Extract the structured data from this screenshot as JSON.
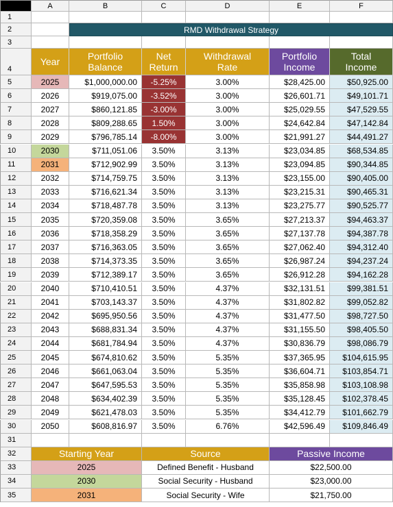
{
  "columns": [
    "A",
    "B",
    "C",
    "D",
    "E",
    "F"
  ],
  "row_numbers": [
    "1",
    "2",
    "3",
    "4",
    "5",
    "6",
    "7",
    "8",
    "9",
    "10",
    "11",
    "12",
    "13",
    "14",
    "15",
    "16",
    "17",
    "18",
    "19",
    "20",
    "21",
    "22",
    "23",
    "24",
    "25",
    "26",
    "27",
    "28",
    "29",
    "30",
    "31",
    "32",
    "33",
    "34",
    "35"
  ],
  "title": "RMD Withdrawal Strategy",
  "headers": {
    "year": "Year",
    "portfolio_balance": [
      "Portfolio",
      "Balance"
    ],
    "net_return": [
      "Net",
      "Return"
    ],
    "withdrawal_rate": [
      "Withdrawal",
      "Rate"
    ],
    "portfolio_income": [
      "Portfolio",
      "Income"
    ],
    "total_income": [
      "Total",
      "Income"
    ]
  },
  "rows": [
    [
      "2025",
      "$1,000,000.00",
      "-5.25%",
      "3.00%",
      "$28,425.00",
      "$50,925.00"
    ],
    [
      "2026",
      "$919,075.00",
      "-3.52%",
      "3.00%",
      "$26,601.71",
      "$49,101.71"
    ],
    [
      "2027",
      "$860,121.85",
      "-3.00%",
      "3.00%",
      "$25,029.55",
      "$47,529.55"
    ],
    [
      "2028",
      "$809,288.65",
      "1.50%",
      "3.00%",
      "$24,642.84",
      "$47,142.84"
    ],
    [
      "2029",
      "$796,785.14",
      "-8.00%",
      "3.00%",
      "$21,991.27",
      "$44,491.27"
    ],
    [
      "2030",
      "$711,051.06",
      "3.50%",
      "3.13%",
      "$23,034.85",
      "$68,534.85"
    ],
    [
      "2031",
      "$712,902.99",
      "3.50%",
      "3.13%",
      "$23,094.85",
      "$90,344.85"
    ],
    [
      "2032",
      "$714,759.75",
      "3.50%",
      "3.13%",
      "$23,155.00",
      "$90,405.00"
    ],
    [
      "2033",
      "$716,621.34",
      "3.50%",
      "3.13%",
      "$23,215.31",
      "$90,465.31"
    ],
    [
      "2034",
      "$718,487.78",
      "3.50%",
      "3.13%",
      "$23,275.77",
      "$90,525.77"
    ],
    [
      "2035",
      "$720,359.08",
      "3.50%",
      "3.65%",
      "$27,213.37",
      "$94,463.37"
    ],
    [
      "2036",
      "$718,358.29",
      "3.50%",
      "3.65%",
      "$27,137.78",
      "$94,387.78"
    ],
    [
      "2037",
      "$716,363.05",
      "3.50%",
      "3.65%",
      "$27,062.40",
      "$94,312.40"
    ],
    [
      "2038",
      "$714,373.35",
      "3.50%",
      "3.65%",
      "$26,987.24",
      "$94,237.24"
    ],
    [
      "2039",
      "$712,389.17",
      "3.50%",
      "3.65%",
      "$26,912.28",
      "$94,162.28"
    ],
    [
      "2040",
      "$710,410.51",
      "3.50%",
      "4.37%",
      "$32,131.51",
      "$99,381.51"
    ],
    [
      "2041",
      "$703,143.37",
      "3.50%",
      "4.37%",
      "$31,802.82",
      "$99,052.82"
    ],
    [
      "2042",
      "$695,950.56",
      "3.50%",
      "4.37%",
      "$31,477.50",
      "$98,727.50"
    ],
    [
      "2043",
      "$688,831.34",
      "3.50%",
      "4.37%",
      "$31,155.50",
      "$98,405.50"
    ],
    [
      "2044",
      "$681,784.94",
      "3.50%",
      "4.37%",
      "$30,836.79",
      "$98,086.79"
    ],
    [
      "2045",
      "$674,810.62",
      "3.50%",
      "5.35%",
      "$37,365.95",
      "$104,615.95"
    ],
    [
      "2046",
      "$661,063.04",
      "3.50%",
      "5.35%",
      "$36,604.71",
      "$103,854.71"
    ],
    [
      "2047",
      "$647,595.53",
      "3.50%",
      "5.35%",
      "$35,858.98",
      "$103,108.98"
    ],
    [
      "2048",
      "$634,402.39",
      "3.50%",
      "5.35%",
      "$35,128.45",
      "$102,378.45"
    ],
    [
      "2049",
      "$621,478.03",
      "3.50%",
      "5.35%",
      "$34,412.79",
      "$101,662.79"
    ],
    [
      "2050",
      "$608,816.97",
      "3.50%",
      "6.76%",
      "$42,596.49",
      "$109,846.49"
    ]
  ],
  "bottom_headers": {
    "starting_year": "Starting Year",
    "source": "Source",
    "passive_income": "Passive Income"
  },
  "income_sources": [
    {
      "starting_year": "2025",
      "source": "Defined Benefit - Husband",
      "passive_income": "$22,500.00"
    },
    {
      "starting_year": "2030",
      "source": "Social Security - Husband",
      "passive_income": "$23,000.00"
    },
    {
      "starting_year": "2031",
      "source": "Social Security - Wife",
      "passive_income": "$21,750.00"
    }
  ],
  "colors": {
    "title_bg": "#215867",
    "header_gold": "#d4a017",
    "header_purple": "#6d4a9e",
    "header_olive": "#566a2c",
    "negative_return": "#993333",
    "year_2025": "#e6b8b8",
    "year_2030": "#c4d79b",
    "year_2031": "#f5b27a",
    "total_income_bg": "#dcecf2"
  }
}
